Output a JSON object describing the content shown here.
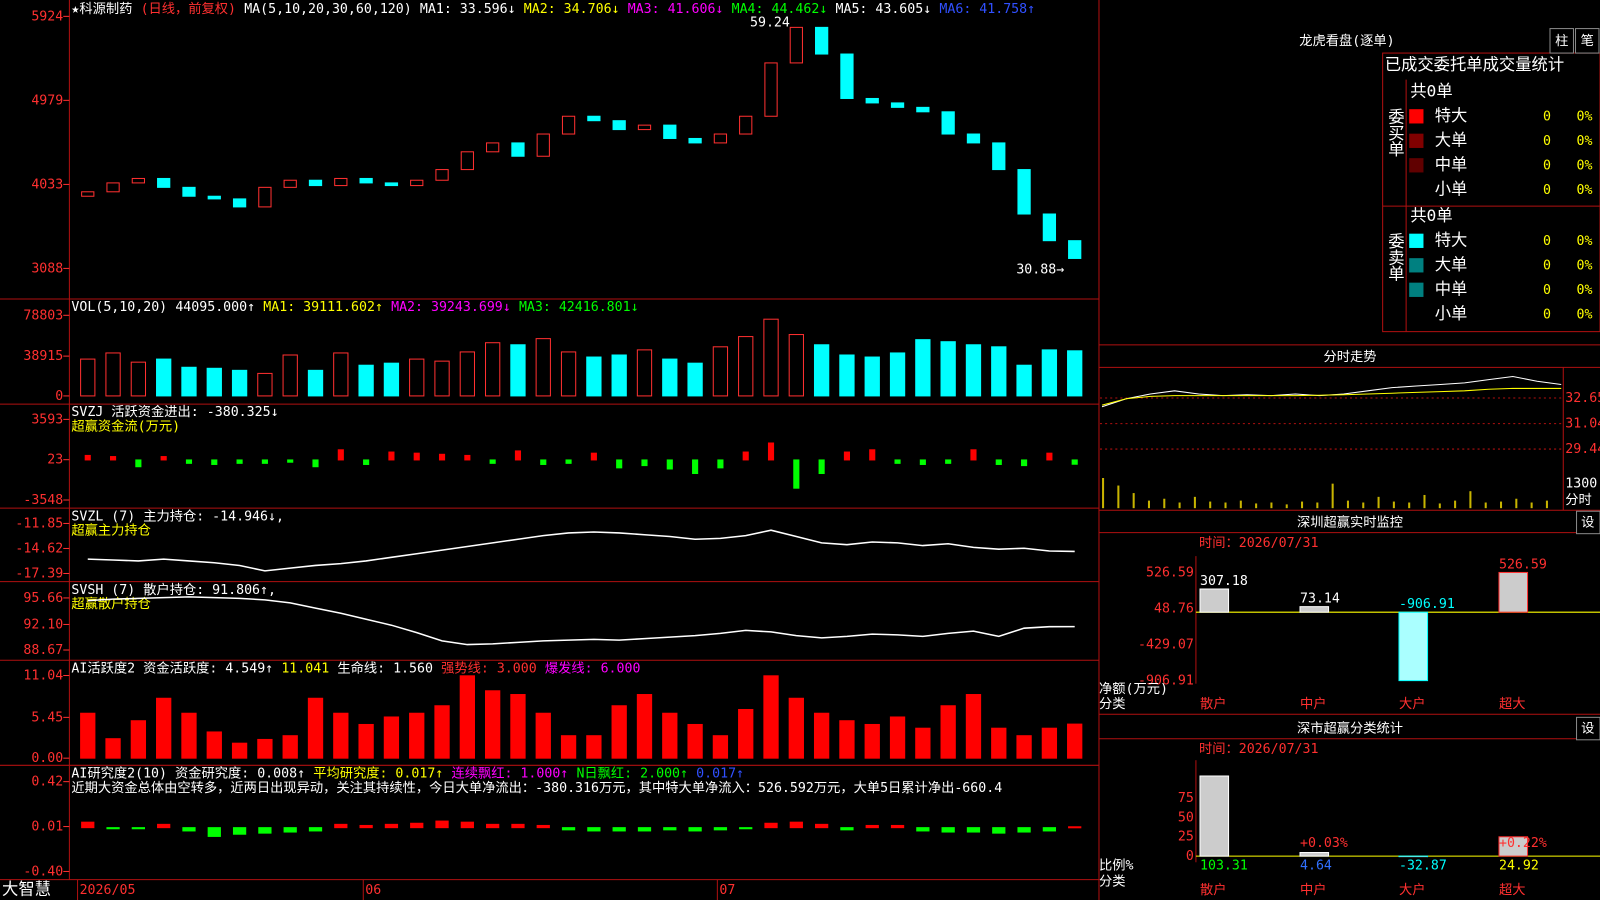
{
  "main": {
    "header": [
      {
        "text": "★科源制药",
        "color": "#ffffff"
      },
      {
        "text": "(日线，前复权)",
        "color": "#ff3030"
      },
      {
        "text": "MA(5,10,20,30,60,120)",
        "color": "#ffffff"
      },
      {
        "text": "MA1: 33.596↓",
        "color": "#ffffff"
      },
      {
        "text": "MA2: 34.706↓",
        "color": "#ffff00"
      },
      {
        "text": "MA3: 41.606↓",
        "color": "#ff00ff"
      },
      {
        "text": "MA4: 44.462↓",
        "color": "#00ff00"
      },
      {
        "text": "MA5: 43.605↓",
        "color": "#ffffff"
      },
      {
        "text": "MA6: 41.758↑",
        "color": "#3050ff"
      }
    ],
    "ylim": [
      2744,
      6108
    ],
    "yticks": [
      5924,
      4979,
      4033,
      3088
    ],
    "first_open": 3900,
    "closes": [
      3950,
      4050,
      4100,
      4000,
      3900,
      3870,
      3780,
      4000,
      4080,
      4020,
      4100,
      4050,
      4020,
      4080,
      4200,
      4400,
      4500,
      4350,
      4600,
      4800,
      4750,
      4650,
      4700,
      4550,
      4500,
      4600,
      4800,
      5400,
      5800,
      5500,
      5000,
      4950,
      4900,
      4850,
      4600,
      4500,
      4200,
      3700,
      3400,
      3200
    ],
    "up_color": "#ff3030",
    "down_color": "#00ffff",
    "annotations": [
      "59.24",
      "30.88→"
    ]
  },
  "panels": [
    {
      "type": "volume",
      "header": [
        {
          "text": "VOL(5,10,20)",
          "color": "#ffffff"
        },
        {
          "text": "44095.000↑",
          "color": "#ffffff"
        },
        {
          "text": "MA1: 39111.602↑",
          "color": "#ffff00"
        },
        {
          "text": "MA2: 39243.699↓",
          "color": "#ff00ff"
        },
        {
          "text": "MA3: 42416.801↓",
          "color": "#00ff00"
        }
      ],
      "ylim": [
        0,
        90770
      ],
      "yticks": [
        78803,
        38915,
        0
      ],
      "values": [
        36000,
        42000,
        33000,
        36000,
        28000,
        27000,
        25000,
        22000,
        40000,
        25000,
        42000,
        30000,
        32000,
        36000,
        34000,
        43000,
        52000,
        50000,
        56000,
        43000,
        38000,
        40000,
        45000,
        36000,
        32000,
        48000,
        58000,
        75000,
        60000,
        50000,
        40000,
        38000,
        42000,
        55000,
        53000,
        50000,
        48000,
        30000,
        45000,
        44095
      ]
    },
    {
      "type": "signed_bar",
      "header": [
        {
          "text": "SVZJ  活跃资金进出: -380.325↓",
          "color": "#ffffff"
        }
      ],
      "subtitle": "超赢资金流(万元)",
      "ylim": [
        -4090,
        4587
      ],
      "yticks": [
        3593,
        23,
        -3548
      ],
      "up_color": "#ff0000",
      "down_color": "#00ff00",
      "values": [
        400,
        300,
        -600,
        300,
        -300,
        -400,
        -300,
        -300,
        -200,
        -600,
        900,
        -400,
        700,
        600,
        500,
        400,
        -300,
        800,
        -400,
        -300,
        600,
        -700,
        -500,
        -800,
        -1200,
        -700,
        700,
        1500,
        -2500,
        -1200,
        700,
        900,
        -300,
        -400,
        -300,
        900,
        -400,
        -500,
        600,
        -380
      ]
    },
    {
      "type": "line",
      "header": [
        {
          "text": "SVZL (7) 主力持仓: -14.946↓,",
          "color": "#ffffff"
        }
      ],
      "subtitle": "超赢主力持仓",
      "ylim": [
        -17.84,
        -10.61
      ],
      "yticks": [
        -11.85,
        -14.62,
        -17.39
      ],
      "color": "#ffffff",
      "values": [
        -15.8,
        -15.9,
        -16.0,
        -15.8,
        -16.0,
        -16.2,
        -16.5,
        -17.1,
        -16.8,
        -16.5,
        -16.3,
        -16.0,
        -15.6,
        -15.2,
        -14.8,
        -14.4,
        -14.0,
        -13.6,
        -13.2,
        -12.9,
        -12.8,
        -12.9,
        -13.1,
        -13.3,
        -13.6,
        -13.5,
        -13.2,
        -12.6,
        -13.3,
        -14.0,
        -14.2,
        -13.9,
        -14.0,
        -14.3,
        -14.1,
        -14.5,
        -14.7,
        -14.6,
        -14.9,
        -14.95
      ]
    },
    {
      "type": "line",
      "header": [
        {
          "text": "SVSH (7) 散户持仓: 91.806↑,",
          "color": "#ffffff"
        }
      ],
      "subtitle": "超赢散户持仓",
      "ylim": [
        87.85,
        97.3
      ],
      "yticks": [
        95.66,
        {
          "value": 92.1,
          "label": "92.10"
        },
        88.67
      ],
      "color": "#ffffff",
      "values": [
        95.3,
        95.5,
        95.6,
        95.7,
        95.8,
        95.7,
        95.6,
        95.4,
        95.0,
        94.3,
        93.6,
        92.8,
        92.0,
        91.0,
        89.9,
        89.4,
        89.5,
        89.7,
        89.9,
        90.0,
        90.1,
        90.0,
        90.2,
        90.4,
        90.6,
        90.9,
        91.3,
        91.1,
        90.6,
        90.3,
        90.5,
        90.8,
        90.7,
        90.5,
        90.9,
        91.2,
        90.5,
        91.6,
        91.8,
        91.81
      ]
    },
    {
      "type": "bar",
      "header": [
        {
          "text": "AI活跃度2 资金活跃度: 4.549↑",
          "color": "#ffffff"
        },
        {
          "text": "11.041",
          "color": "#ffff00"
        },
        {
          "text": "生命线: 1.560",
          "color": "#ffffff"
        },
        {
          "text": "强势线: 3.000",
          "color": "#ff3030"
        },
        {
          "text": "爆发线: 6.000",
          "color": "#ff00ff"
        }
      ],
      "ylim": [
        0,
        12.54
      ],
      "yticks": [
        11.04,
        5.45,
        {
          "value": 0,
          "label": "0.00"
        }
      ],
      "color": "#ff0000",
      "values": [
        6,
        2.6,
        5,
        8,
        6,
        3.5,
        2,
        2.5,
        3,
        8,
        6,
        4.5,
        5.5,
        6,
        7,
        11,
        9,
        8.5,
        6,
        3,
        3,
        7,
        8.5,
        6,
        4.5,
        3,
        6.5,
        11,
        8,
        6,
        5,
        4.5,
        5.5,
        4,
        7,
        8.5,
        4,
        3,
        4,
        4.549
      ]
    },
    {
      "type": "signed_bar",
      "header": [
        {
          "text": "AI研究度2(10) 资金研究度: 0.008↑",
          "color": "#ffffff"
        },
        {
          "text": "平均研究度: 0.017↑",
          "color": "#ffff00"
        },
        {
          "text": "连续飘红: 1.000↑",
          "color": "#ff00ff"
        },
        {
          "text": "N日飘红: 2.000↑",
          "color": "#00ff00"
        },
        {
          "text": "0.017↑",
          "color": "#3050ff"
        }
      ],
      "subtitle": "近期大资金总体由空转多，近两日出现异动，关注其持续性，今日大单净流出：-380.316万元，其中特大单净流入：526.592万元，大单5日累计净出-660.4",
      "ylim": [
        -0.437,
        0.532
      ],
      "yticks": [
        0.42,
        0.01,
        {
          "value": -0.4,
          "label": "-0.40"
        }
      ],
      "up_color": "#ff0000",
      "down_color": "#00ff00",
      "values": [
        0.05,
        -0.01,
        -0.01,
        0.03,
        -0.03,
        -0.08,
        -0.06,
        -0.05,
        -0.04,
        -0.03,
        0.03,
        0.02,
        0.03,
        0.04,
        0.06,
        0.05,
        0.03,
        0.03,
        0.02,
        -0.02,
        -0.03,
        -0.03,
        -0.03,
        -0.02,
        -0.03,
        -0.02,
        -0.01,
        0.04,
        0.05,
        0.03,
        -0.02,
        0.02,
        0.02,
        -0.03,
        -0.04,
        -0.04,
        -0.05,
        -0.04,
        -0.03,
        0.008
      ]
    }
  ],
  "brand": "大智慧",
  "date_labels": [
    "2026/05",
    "06",
    "07"
  ],
  "right": {
    "title": "龙虎看盘(逐单)",
    "buttons": [
      "柱",
      "笔"
    ],
    "stats_title": "已成交委托单成交量统计",
    "buy": {
      "label": "委买单",
      "total": "共0单",
      "rows": [
        {
          "name": "特大",
          "count": "0",
          "pct": "0%",
          "color": "#ff0000"
        },
        {
          "name": "大单",
          "count": "0",
          "pct": "0%",
          "color": "#800000"
        },
        {
          "name": "中单",
          "count": "0",
          "pct": "0%",
          "color": "#600000"
        },
        {
          "name": "小单",
          "count": "0",
          "pct": "0%"
        }
      ]
    },
    "sell": {
      "label": "委卖单",
      "total": "共0单",
      "rows": [
        {
          "name": "特大",
          "count": "0",
          "pct": "0%",
          "color": "#00ffff"
        },
        {
          "name": "大单",
          "count": "0",
          "pct": "0%",
          "color": "#008080"
        },
        {
          "name": "中单",
          "count": "0",
          "pct": "0%",
          "color": "#008080"
        },
        {
          "name": "小单",
          "count": "0",
          "pct": "0%"
        }
      ]
    },
    "intraday": {
      "title": "分时走势",
      "ylim": [
        29.06,
        34.19
      ],
      "yticks": [
        32.65,
        31.04,
        29.44
      ],
      "price_color": "#ffffff",
      "avg_color": "#ffff00",
      "price": [
        32.1,
        32.6,
        32.9,
        33.1,
        32.9,
        32.8,
        32.85,
        32.8,
        32.9,
        32.8,
        32.9,
        33.1,
        33.3,
        33.4,
        33.5,
        33.6,
        33.8,
        34.0,
        33.7,
        33.5
      ],
      "avg": [
        32.2,
        32.6,
        32.75,
        32.8,
        32.8,
        32.8,
        32.8,
        32.8,
        32.8,
        32.82,
        32.85,
        32.9,
        32.95,
        33.0,
        33.05,
        33.1,
        33.2,
        33.25,
        33.25,
        33.25
      ],
      "volume": [
        1600,
        1200,
        800,
        400,
        500,
        300,
        600,
        350,
        300,
        400,
        250,
        300,
        200,
        350,
        300,
        1300,
        400,
        300,
        600,
        350,
        300,
        700,
        250,
        400,
        900,
        300,
        350,
        500,
        300,
        400
      ],
      "vol_ylim": [
        0,
        1732
      ],
      "vol_yticks": [
        1300
      ],
      "vol_unit": "分时"
    },
    "monitor": {
      "title": "深圳超赢实时监控",
      "button": "设",
      "time": "时间：2026/07/31",
      "ylim": [
        -906.91,
        526.59
      ],
      "yticks": [
        526.59,
        48.76,
        -429.07,
        -906.91
      ],
      "categories": [
        "散户",
        "中户",
        "大户",
        "超大"
      ],
      "values": [
        307.18,
        73.14,
        -906.91,
        526.59
      ],
      "label_colors": [
        "#ffffff",
        "#ffffff",
        "#00ffff",
        "#ff3030"
      ],
      "y_label": "净额(万元)",
      "x_label": "分类"
    },
    "classify": {
      "title": "深市超赢分类统计",
      "button": "设",
      "time": "时间：2026/07/31",
      "ylim": [
        0,
        101.3
      ],
      "yticks": [
        75,
        50,
        25,
        0
      ],
      "categories": [
        "散户",
        "中户",
        "大户",
        "超大"
      ],
      "values": [
        103.31,
        4.64,
        -32.87,
        24.92
      ],
      "value_colors": [
        "#00ff00",
        "#3070ff",
        "#00ffff",
        "#ffff00"
      ],
      "notes": [
        {
          "index": 1,
          "text": "+0.03%"
        },
        {
          "index": 3,
          "text": "+0.22%"
        }
      ],
      "y_label": "比例%",
      "x_label": "分类"
    }
  }
}
